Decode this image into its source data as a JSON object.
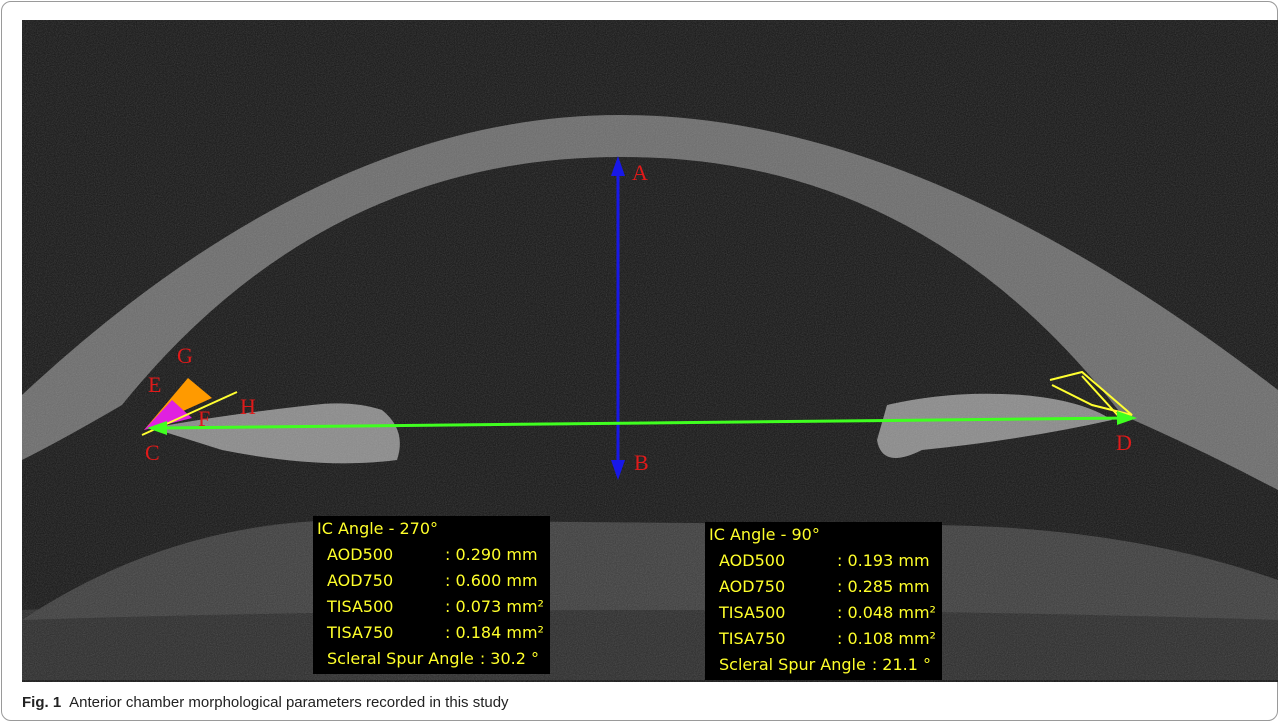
{
  "labels": [
    "A",
    "B",
    "C",
    "D",
    "E",
    "F",
    "G",
    "H"
  ],
  "measurements": [
    {
      "title": "IC Angle - 270°",
      "rows": [
        [
          "AOD500",
          ": 0.290 mm"
        ],
        [
          "AOD750",
          ": 0.600 mm"
        ],
        [
          "TISA500",
          ": 0.073 mm²"
        ],
        [
          "TISA750",
          ": 0.184 mm²"
        ],
        [
          "Scleral Spur Angle",
          ": 30.2 °"
        ]
      ]
    },
    {
      "title": "IC Angle - 90°",
      "rows": [
        [
          "AOD500",
          ": 0.193 mm"
        ],
        [
          "AOD750",
          ": 0.285 mm"
        ],
        [
          "TISA500",
          ": 0.048 mm²"
        ],
        [
          "TISA750",
          ": 0.108 mm²"
        ],
        [
          "Scleral Spur Angle",
          ": 21.1 °"
        ]
      ]
    }
  ],
  "caption": {
    "label": "Fig. 1",
    "text": "Anterior chamber morphological parameters recorded in this study"
  }
}
